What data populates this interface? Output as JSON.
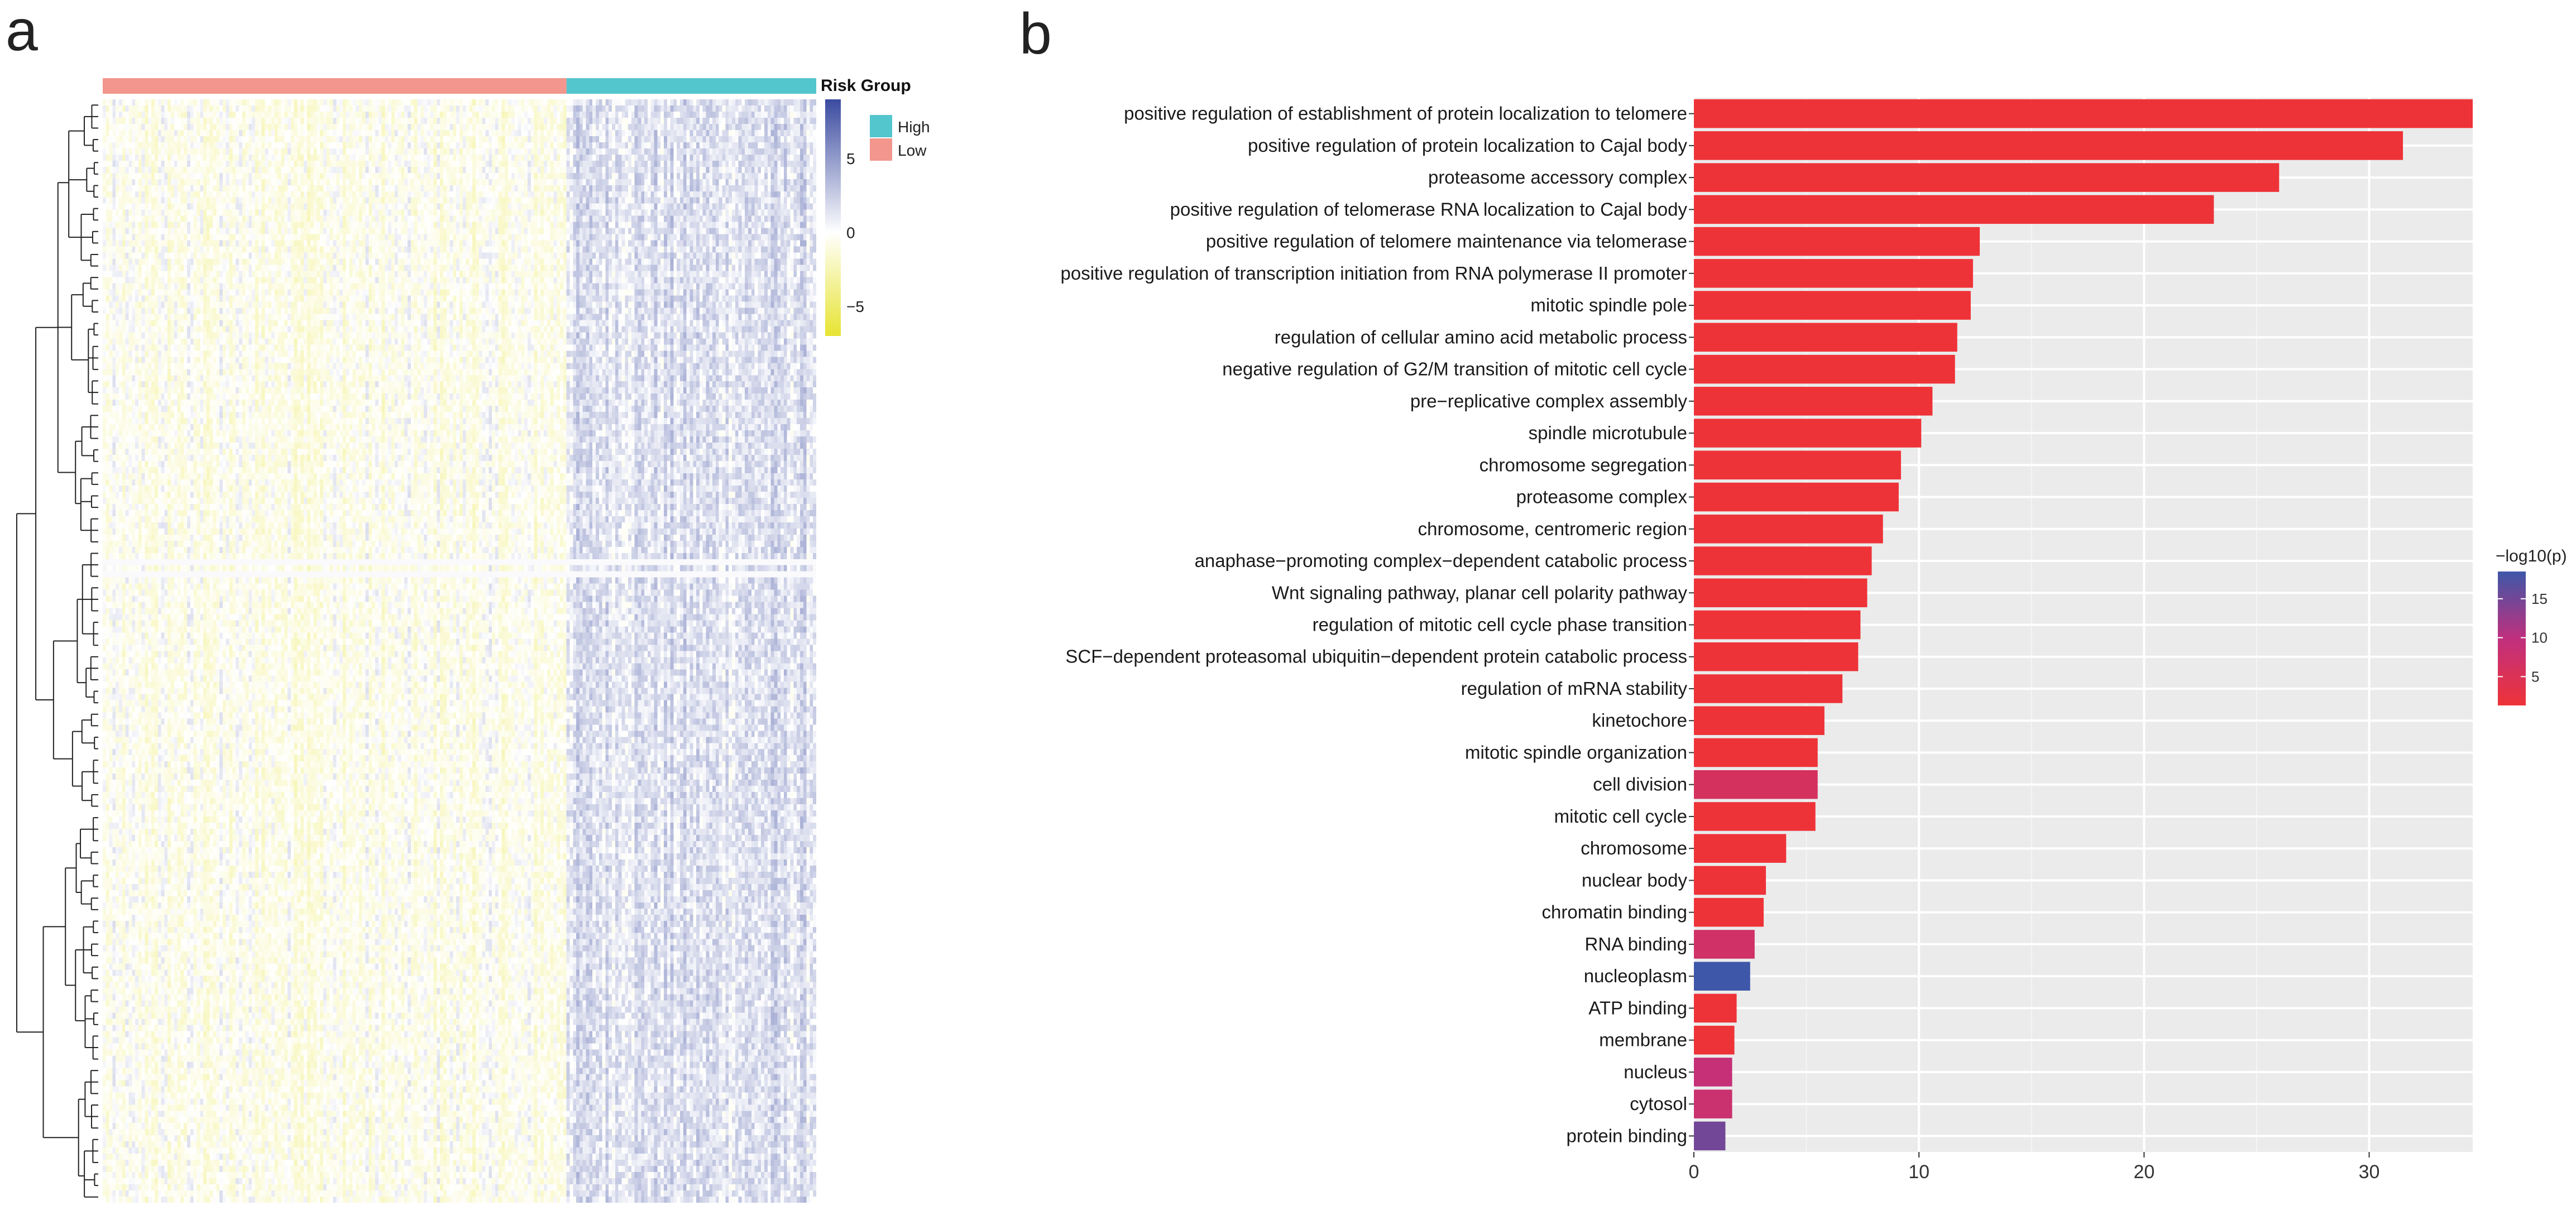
{
  "panels": {
    "a": "a",
    "b": "b"
  },
  "chart_data": [
    {
      "type": "heatmap",
      "panel": "a",
      "annotation": {
        "title": "Risk Group",
        "groups": [
          {
            "label": "High",
            "color": "#53C5CC"
          },
          {
            "label": "Low",
            "color": "#F2968E"
          }
        ],
        "order": [
          "Low",
          "High"
        ],
        "low_fraction": 0.65
      },
      "color_scale": {
        "ticks": [
          5,
          0,
          -5
        ],
        "tick_labels": [
          "5",
          "0",
          "−5"
        ],
        "range": [
          -7,
          9
        ],
        "colors": {
          "high": "#3B4BA0",
          "mid": "#FFFFFF",
          "low": "#E7E431"
        }
      },
      "rows_clustered": true,
      "columns": "samples ordered by risk group"
    },
    {
      "type": "bar",
      "orientation": "horizontal",
      "panel": "b",
      "xlabel": "",
      "ylabel": "",
      "xlim": [
        0,
        34.6
      ],
      "xticks": [
        0,
        10,
        20,
        30
      ],
      "grid": true,
      "legend": {
        "title": "−log10(p)",
        "ticks": [
          15,
          10,
          5
        ],
        "range": [
          1.3,
          18.5
        ],
        "position": "right"
      },
      "categories": [
        "positive regulation of establishment of protein localization to telomere",
        "positive regulation of protein localization to Cajal body",
        "proteasome accessory complex",
        "positive regulation of telomerase RNA localization to Cajal body",
        "positive regulation of telomere maintenance via telomerase",
        "positive regulation of transcription initiation from RNA polymerase II promoter",
        "mitotic spindle pole",
        "regulation of cellular amino acid metabolic process",
        "negative regulation of G2/M transition of mitotic cell cycle",
        "pre−replicative complex assembly",
        "spindle microtubule",
        "chromosome segregation",
        "proteasome complex",
        "chromosome, centromeric region",
        "anaphase−promoting complex−dependent catabolic process",
        "Wnt signaling pathway, planar cell polarity pathway",
        "regulation of mitotic cell cycle phase transition",
        "SCF−dependent proteasomal ubiquitin−dependent protein catabolic process",
        "regulation of mRNA stability",
        "kinetochore",
        "mitotic spindle organization",
        "cell division",
        "mitotic cell cycle",
        "chromosome",
        "nuclear body",
        "chromatin binding",
        "RNA binding",
        "nucleoplasm",
        "ATP binding",
        "membrane",
        "nucleus",
        "cytosol",
        "protein binding"
      ],
      "values": [
        34.6,
        31.5,
        26.0,
        23.1,
        12.7,
        12.4,
        12.3,
        11.7,
        11.6,
        10.6,
        10.1,
        9.2,
        9.1,
        8.4,
        7.9,
        7.7,
        7.4,
        7.3,
        6.6,
        5.8,
        5.5,
        5.5,
        5.4,
        4.1,
        3.2,
        3.1,
        2.7,
        2.5,
        1.9,
        1.8,
        1.7,
        1.7,
        1.4
      ],
      "neglog10p": [
        1.3,
        1.3,
        1.3,
        1.3,
        1.3,
        1.3,
        1.3,
        1.3,
        1.3,
        1.3,
        1.3,
        1.3,
        1.3,
        1.3,
        1.3,
        1.3,
        1.3,
        1.3,
        1.3,
        1.3,
        1.3,
        6.0,
        1.3,
        1.3,
        1.3,
        1.3,
        7.0,
        18.5,
        1.3,
        1.3,
        9.0,
        8.0,
        15.0
      ]
    }
  ]
}
